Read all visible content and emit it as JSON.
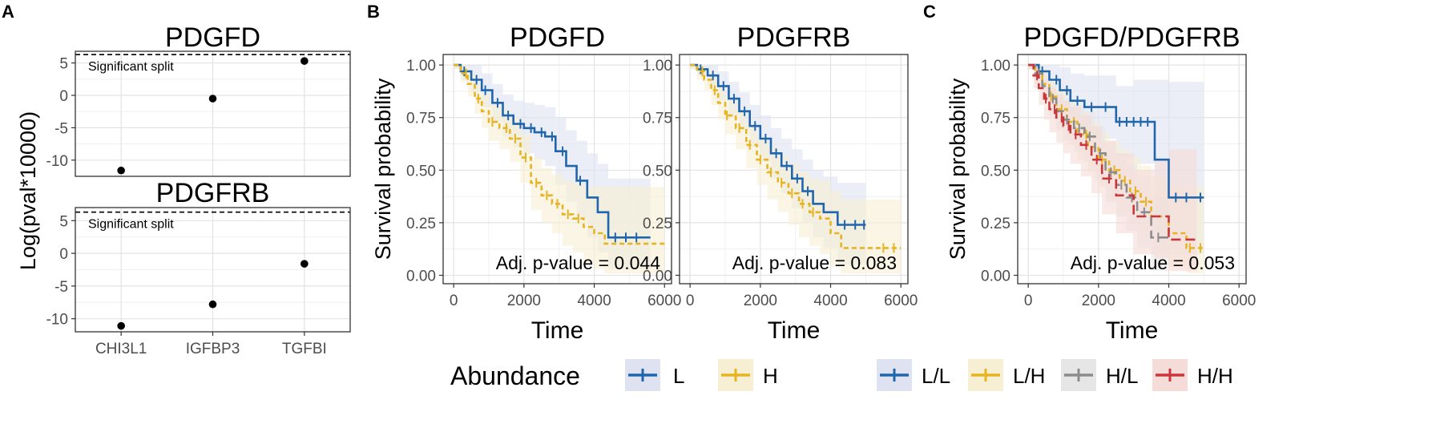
{
  "panel_labels": {
    "a": "A",
    "b": "B",
    "c": "C"
  },
  "legends": {
    "b": {
      "title": "Abundance",
      "entries": [
        {
          "label": "L",
          "color": "#2166ac"
        },
        {
          "label": "H",
          "color": "#e6b422"
        }
      ]
    },
    "c": {
      "entries": [
        {
          "label": "L/L",
          "color": "#2166ac"
        },
        {
          "label": "L/H",
          "color": "#e6b422"
        },
        {
          "label": "H/L",
          "color": "#8c8c8c"
        },
        {
          "label": "H/H",
          "color": "#c8373a"
        }
      ]
    }
  },
  "chart_data": [
    {
      "id": "a-top",
      "type": "scatter",
      "title": "PDGFD",
      "ylabel": "Log(pval*10000)",
      "categories": [
        "CHI3L1",
        "IGFBP3",
        "TGFBI"
      ],
      "values": [
        -11.6,
        -0.5,
        5.3
      ],
      "ylim": [
        -12.5,
        6.8
      ],
      "yticks": [
        -10,
        -5,
        0,
        5
      ],
      "threshold": {
        "value": 6.3,
        "label": "Significant split"
      },
      "show_x_tick_labels": false
    },
    {
      "id": "a-bottom",
      "type": "scatter",
      "title": "PDGFRB",
      "ylabel": "Log(pval*10000)",
      "categories": [
        "CHI3L1",
        "IGFBP3",
        "TGFBI"
      ],
      "values": [
        -11.1,
        -7.8,
        -1.6
      ],
      "ylim": [
        -12.0,
        7.0
      ],
      "yticks": [
        -10,
        -5,
        0,
        5
      ],
      "threshold": {
        "value": 6.3,
        "label": "Significant split"
      },
      "show_x_tick_labels": true
    },
    {
      "id": "b-left",
      "type": "line",
      "title": "PDGFD",
      "ylabel": "Survival probability",
      "xlabel": "Time",
      "xlim": [
        -300,
        6200
      ],
      "xticks": [
        0,
        2000,
        4000,
        6000
      ],
      "ylim": [
        -0.04,
        1.05
      ],
      "yticks": [
        0.0,
        0.25,
        0.5,
        0.75,
        1.0
      ],
      "annotation": "Adj. p-value = 0.044",
      "series": [
        {
          "name": "L",
          "color": "#2166ac",
          "x": [
            0,
            200,
            500,
            800,
            1100,
            1400,
            1700,
            2000,
            2300,
            2600,
            2900,
            3200,
            3500,
            3800,
            4100,
            4400,
            5600
          ],
          "y": [
            1.0,
            0.97,
            0.93,
            0.88,
            0.82,
            0.76,
            0.72,
            0.7,
            0.68,
            0.66,
            0.59,
            0.52,
            0.45,
            0.37,
            0.3,
            0.18,
            0.18
          ],
          "upper": [
            1.0,
            1.0,
            1.0,
            0.96,
            0.91,
            0.86,
            0.83,
            0.82,
            0.81,
            0.8,
            0.75,
            0.69,
            0.64,
            0.58,
            0.53,
            0.46,
            0.46
          ],
          "lower": [
            0.98,
            0.93,
            0.87,
            0.8,
            0.73,
            0.66,
            0.61,
            0.58,
            0.55,
            0.52,
            0.43,
            0.35,
            0.27,
            0.18,
            0.11,
            0.03,
            0.03
          ],
          "censor_x": [
            300,
            650,
            900,
            1250,
            1550,
            1900,
            2200,
            2500,
            2800,
            3100,
            3600,
            4600,
            4900,
            5200
          ]
        },
        {
          "name": "H",
          "color": "#e6b422",
          "x": [
            0,
            200,
            400,
            600,
            800,
            1000,
            1300,
            1600,
            1900,
            2200,
            2500,
            2800,
            3100,
            3400,
            3700,
            4000,
            4300,
            6000
          ],
          "y": [
            1.0,
            0.96,
            0.91,
            0.84,
            0.78,
            0.73,
            0.7,
            0.65,
            0.56,
            0.44,
            0.38,
            0.34,
            0.29,
            0.27,
            0.23,
            0.2,
            0.15,
            0.15
          ],
          "upper": [
            1.0,
            1.0,
            0.97,
            0.91,
            0.86,
            0.81,
            0.79,
            0.75,
            0.67,
            0.56,
            0.51,
            0.48,
            0.45,
            0.44,
            0.42,
            0.42,
            0.42,
            0.42
          ],
          "lower": [
            0.98,
            0.92,
            0.85,
            0.77,
            0.7,
            0.64,
            0.6,
            0.54,
            0.44,
            0.31,
            0.25,
            0.2,
            0.14,
            0.11,
            0.06,
            0.03,
            0.01,
            0.01
          ],
          "censor_x": [
            350,
            700,
            1100,
            1500,
            1750,
            2050,
            2350,
            2650,
            2950,
            3250,
            3550
          ]
        }
      ]
    },
    {
      "id": "b-right",
      "type": "line",
      "title": "PDGFRB",
      "xlabel": "Time",
      "xlim": [
        -300,
        6200
      ],
      "xticks": [
        0,
        2000,
        4000,
        6000
      ],
      "ylim": [
        -0.04,
        1.05
      ],
      "yticks": [
        0.0,
        0.25,
        0.5,
        0.75,
        1.0
      ],
      "annotation": "Adj. p-value = 0.083",
      "series": [
        {
          "name": "L",
          "color": "#2166ac",
          "x": [
            0,
            200,
            500,
            800,
            1100,
            1400,
            1700,
            2000,
            2300,
            2600,
            2900,
            3200,
            3500,
            3800,
            4200,
            5000
          ],
          "y": [
            1.0,
            0.98,
            0.95,
            0.9,
            0.84,
            0.78,
            0.71,
            0.65,
            0.58,
            0.52,
            0.46,
            0.4,
            0.34,
            0.3,
            0.24,
            0.24
          ],
          "upper": [
            1.0,
            1.0,
            1.0,
            0.97,
            0.92,
            0.87,
            0.81,
            0.76,
            0.7,
            0.65,
            0.6,
            0.55,
            0.5,
            0.47,
            0.44,
            0.44
          ],
          "lower": [
            0.98,
            0.95,
            0.9,
            0.83,
            0.76,
            0.69,
            0.61,
            0.54,
            0.46,
            0.39,
            0.32,
            0.25,
            0.18,
            0.13,
            0.05,
            0.05
          ],
          "censor_x": [
            300,
            650,
            950,
            1250,
            1550,
            1850,
            2150,
            2450,
            2750,
            3050,
            3350,
            4400,
            4700,
            4950
          ]
        },
        {
          "name": "H",
          "color": "#e6b422",
          "x": [
            0,
            200,
            400,
            600,
            800,
            1000,
            1300,
            1600,
            1900,
            2200,
            2500,
            2800,
            3100,
            3400,
            3700,
            4000,
            4300,
            6000
          ],
          "y": [
            1.0,
            0.97,
            0.93,
            0.88,
            0.82,
            0.76,
            0.7,
            0.62,
            0.55,
            0.49,
            0.44,
            0.39,
            0.34,
            0.3,
            0.27,
            0.2,
            0.13,
            0.13
          ],
          "upper": [
            1.0,
            1.0,
            0.98,
            0.94,
            0.89,
            0.84,
            0.79,
            0.72,
            0.66,
            0.61,
            0.57,
            0.53,
            0.49,
            0.46,
            0.45,
            0.4,
            0.36,
            0.36
          ],
          "lower": [
            0.98,
            0.93,
            0.88,
            0.81,
            0.74,
            0.67,
            0.6,
            0.51,
            0.43,
            0.36,
            0.3,
            0.24,
            0.18,
            0.14,
            0.1,
            0.04,
            0.01,
            0.01
          ],
          "censor_x": [
            350,
            700,
            1050,
            1400,
            1700,
            2000,
            2300,
            2600,
            2900,
            3200,
            3500,
            5500,
            5800
          ]
        }
      ]
    },
    {
      "id": "c",
      "type": "line",
      "title": "PDGFD/PDGFRB",
      "ylabel": "Survival probability",
      "xlabel": "Time",
      "xlim": [
        -300,
        6200
      ],
      "xticks": [
        0,
        2000,
        4000,
        6000
      ],
      "ylim": [
        -0.04,
        1.05
      ],
      "yticks": [
        0.0,
        0.25,
        0.5,
        0.75,
        1.0
      ],
      "annotation": "Adj. p-value = 0.053",
      "series": [
        {
          "name": "L/L",
          "color": "#2166ac",
          "x": [
            0,
            300,
            600,
            900,
            1200,
            1600,
            2000,
            2500,
            3000,
            3600,
            4000,
            5000
          ],
          "y": [
            1.0,
            0.97,
            0.93,
            0.88,
            0.83,
            0.8,
            0.8,
            0.73,
            0.73,
            0.55,
            0.37,
            0.37
          ],
          "upper": [
            1.0,
            1.0,
            1.0,
            0.99,
            0.96,
            0.95,
            0.95,
            0.9,
            0.93,
            0.93,
            0.92,
            0.92
          ],
          "lower": [
            0.98,
            0.92,
            0.85,
            0.77,
            0.7,
            0.65,
            0.65,
            0.56,
            0.53,
            0.2,
            0.1,
            0.1
          ],
          "censor_x": [
            400,
            800,
            1100,
            1400,
            1800,
            2200,
            2600,
            2800,
            3000,
            3200,
            3400,
            4200,
            4500,
            4900
          ]
        },
        {
          "name": "L/H",
          "color": "#e6b422",
          "x": [
            0,
            200,
            400,
            600,
            800,
            1100,
            1400,
            1700,
            2000,
            2300,
            2600,
            2900,
            3200,
            3500,
            4000,
            4500,
            5000
          ],
          "y": [
            1.0,
            0.96,
            0.91,
            0.85,
            0.79,
            0.73,
            0.67,
            0.61,
            0.55,
            0.5,
            0.45,
            0.4,
            0.35,
            0.28,
            0.2,
            0.13,
            0.13
          ],
          "upper": [
            1.0,
            1.0,
            0.98,
            0.93,
            0.89,
            0.84,
            0.78,
            0.73,
            0.68,
            0.64,
            0.6,
            0.56,
            0.52,
            0.47,
            0.43,
            0.42,
            0.42
          ],
          "lower": [
            0.98,
            0.91,
            0.84,
            0.77,
            0.7,
            0.62,
            0.55,
            0.49,
            0.42,
            0.36,
            0.3,
            0.24,
            0.18,
            0.1,
            0.04,
            0.01,
            0.01
          ],
          "censor_x": [
            300,
            650,
            950,
            1300,
            1650,
            2100,
            2450,
            2750,
            3050,
            3350,
            4600,
            4900
          ]
        },
        {
          "name": "H/L",
          "color": "#8c8c8c",
          "x": [
            0,
            200,
            400,
            600,
            800,
            1000,
            1300,
            1600,
            1900,
            2200,
            2500,
            2800,
            3100,
            3500,
            4000
          ],
          "y": [
            1.0,
            0.96,
            0.9,
            0.84,
            0.78,
            0.74,
            0.7,
            0.66,
            0.58,
            0.49,
            0.43,
            0.37,
            0.3,
            0.18,
            0.18
          ],
          "upper": [
            1.0,
            1.0,
            0.97,
            0.92,
            0.87,
            0.84,
            0.81,
            0.78,
            0.71,
            0.63,
            0.58,
            0.53,
            0.47,
            0.37,
            0.37
          ],
          "lower": [
            0.98,
            0.91,
            0.83,
            0.76,
            0.69,
            0.64,
            0.59,
            0.54,
            0.45,
            0.35,
            0.28,
            0.21,
            0.13,
            0.02,
            0.02
          ],
          "censor_x": [
            300,
            700,
            1100,
            1450,
            1750,
            2050,
            2350,
            2650,
            2950,
            3300,
            3700
          ]
        },
        {
          "name": "H/H",
          "color": "#c8373a",
          "x": [
            0,
            150,
            300,
            450,
            600,
            800,
            1000,
            1200,
            1500,
            1800,
            2100,
            2500,
            3000,
            3600,
            4000,
            4800
          ],
          "y": [
            1.0,
            0.95,
            0.89,
            0.84,
            0.79,
            0.75,
            0.71,
            0.67,
            0.62,
            0.55,
            0.46,
            0.38,
            0.28,
            0.28,
            0.17,
            0.17
          ],
          "upper": [
            1.0,
            1.0,
            0.97,
            0.93,
            0.89,
            0.86,
            0.83,
            0.8,
            0.76,
            0.71,
            0.64,
            0.58,
            0.5,
            0.55,
            0.6,
            0.6
          ],
          "lower": [
            0.98,
            0.89,
            0.81,
            0.74,
            0.68,
            0.63,
            0.58,
            0.53,
            0.47,
            0.39,
            0.29,
            0.2,
            0.1,
            0.08,
            0.02,
            0.02
          ],
          "censor_x": [
            250,
            500,
            750,
            950,
            1150,
            1350,
            1650,
            1950,
            2300
          ]
        }
      ]
    }
  ]
}
